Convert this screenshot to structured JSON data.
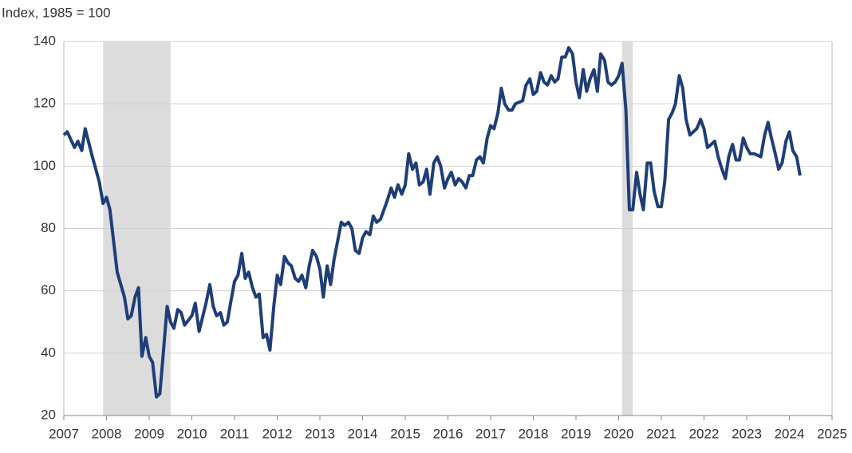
{
  "chart_data": {
    "type": "line",
    "y_axis_label": "Index, 1985 = 100",
    "xlim": [
      2007,
      2025
    ],
    "xticks": [
      2007,
      2008,
      2009,
      2010,
      2011,
      2012,
      2013,
      2014,
      2015,
      2016,
      2017,
      2018,
      2019,
      2020,
      2021,
      2022,
      2023,
      2024,
      2025
    ],
    "ylim": [
      20,
      140
    ],
    "yticks": [
      20,
      40,
      60,
      80,
      100,
      120,
      140
    ],
    "grid": true,
    "recessions": [
      {
        "start": 2007.92,
        "end": 2009.5
      },
      {
        "start": 2020.08,
        "end": 2020.33
      }
    ],
    "recession_color": "#dcdcdc",
    "x": [
      2007.0,
      2007.08,
      2007.25,
      2007.33,
      2007.42,
      2007.5,
      2007.67,
      2007.83,
      2007.92,
      2008.0,
      2008.08,
      2008.25,
      2008.42,
      2008.5,
      2008.58,
      2008.67,
      2008.75,
      2008.83,
      2008.92,
      2009.0,
      2009.08,
      2009.17,
      2009.25,
      2009.33,
      2009.42,
      2009.5,
      2009.58,
      2009.67,
      2009.75,
      2009.83,
      2010.0,
      2010.08,
      2010.17,
      2010.33,
      2010.42,
      2010.5,
      2010.58,
      2010.67,
      2010.75,
      2010.83,
      2010.92,
      2011.0,
      2011.08,
      2011.17,
      2011.25,
      2011.33,
      2011.42,
      2011.5,
      2011.58,
      2011.67,
      2011.75,
      2011.83,
      2011.92,
      2012.0,
      2012.08,
      2012.17,
      2012.25,
      2012.33,
      2012.42,
      2012.5,
      2012.58,
      2012.67,
      2012.75,
      2012.83,
      2012.92,
      2013.0,
      2013.08,
      2013.17,
      2013.25,
      2013.33,
      2013.5,
      2013.58,
      2013.67,
      2013.75,
      2013.83,
      2013.92,
      2014.0,
      2014.08,
      2014.17,
      2014.25,
      2014.33,
      2014.42,
      2014.58,
      2014.67,
      2014.75,
      2014.83,
      2014.92,
      2015.0,
      2015.08,
      2015.17,
      2015.25,
      2015.33,
      2015.42,
      2015.5,
      2015.58,
      2015.67,
      2015.75,
      2015.83,
      2015.92,
      2016.0,
      2016.08,
      2016.17,
      2016.25,
      2016.33,
      2016.42,
      2016.5,
      2016.58,
      2016.67,
      2016.75,
      2016.83,
      2016.92,
      2017.0,
      2017.08,
      2017.17,
      2017.25,
      2017.33,
      2017.42,
      2017.5,
      2017.58,
      2017.75,
      2017.83,
      2017.92,
      2018.0,
      2018.08,
      2018.17,
      2018.25,
      2018.33,
      2018.42,
      2018.5,
      2018.58,
      2018.67,
      2018.75,
      2018.83,
      2018.92,
      2019.0,
      2019.08,
      2019.17,
      2019.25,
      2019.33,
      2019.42,
      2019.5,
      2019.58,
      2019.67,
      2019.75,
      2019.83,
      2019.92,
      2020.0,
      2020.08,
      2020.17,
      2020.25,
      2020.33,
      2020.42,
      2020.5,
      2020.58,
      2020.67,
      2020.75,
      2020.83,
      2020.92,
      2021.0,
      2021.08,
      2021.17,
      2021.25,
      2021.33,
      2021.42,
      2021.5,
      2021.58,
      2021.67,
      2021.75,
      2021.83,
      2021.92,
      2022.0,
      2022.08,
      2022.17,
      2022.25,
      2022.33,
      2022.42,
      2022.5,
      2022.58,
      2022.67,
      2022.75,
      2022.83,
      2022.92,
      2023.0,
      2023.08,
      2023.17,
      2023.33,
      2023.42,
      2023.5,
      2023.58,
      2023.67,
      2023.75,
      2023.83,
      2023.92,
      2024.0,
      2024.08,
      2024.17,
      2024.25
    ],
    "series": [
      {
        "color": "#1f3e78",
        "values": [
          110,
          111,
          106,
          108,
          105,
          112,
          103,
          95,
          88,
          90,
          86,
          66,
          58,
          51,
          52,
          58,
          61,
          39,
          45,
          39,
          37,
          26,
          27,
          40,
          55,
          50,
          48,
          54,
          53,
          49,
          52,
          56,
          47,
          56,
          62,
          55,
          52,
          53,
          49,
          50,
          57,
          63,
          65,
          72,
          64,
          66,
          61,
          58,
          59,
          45,
          46,
          41,
          55,
          65,
          62,
          71,
          69,
          68,
          64,
          63,
          65,
          61,
          68,
          73,
          71,
          67,
          58,
          68,
          62,
          70,
          82,
          81,
          82,
          80,
          73,
          72,
          77,
          79,
          78,
          84,
          82,
          83,
          89,
          93,
          90,
          94,
          91,
          94,
          104,
          99,
          101,
          94,
          95,
          99,
          91,
          101,
          103,
          100,
          93,
          96,
          98,
          94,
          96,
          95,
          93,
          97,
          97,
          102,
          103,
          101,
          109,
          113,
          112,
          117,
          125,
          120,
          118,
          118,
          120,
          121,
          126,
          128,
          123,
          124,
          130,
          127,
          126,
          129,
          127,
          128,
          135,
          135,
          138,
          136,
          127,
          122,
          131,
          124,
          128,
          131,
          124,
          136,
          134,
          127,
          126,
          127,
          129,
          133,
          118,
          86,
          86,
          98,
          91,
          86,
          101,
          101,
          92,
          87,
          87,
          95,
          115,
          117,
          120,
          129,
          125,
          115,
          110,
          111,
          112,
          115,
          112,
          106,
          107,
          108,
          103,
          99,
          96,
          103,
          107,
          102,
          102,
          109,
          106,
          104,
          104,
          103,
          110,
          114,
          109,
          104,
          99,
          101,
          108,
          111,
          105,
          103,
          97
        ]
      }
    ]
  }
}
